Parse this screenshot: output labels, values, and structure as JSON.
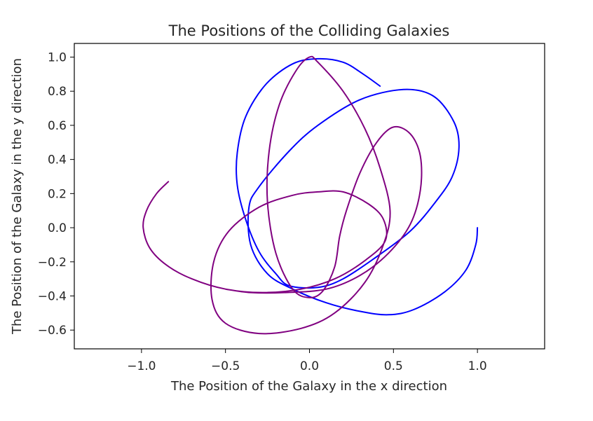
{
  "chart_data": {
    "type": "line",
    "title": "The Positions of the Colliding Galaxies",
    "xlabel": "The Position of the Galaxy in the x direction",
    "ylabel": "The Position of the Galaxy in the y direction",
    "xlim": [
      -1.4,
      1.4
    ],
    "ylim": [
      -0.71,
      1.08
    ],
    "xticks": [
      -1.0,
      -0.5,
      0.0,
      0.5,
      1.0
    ],
    "xtick_labels": [
      "−1.0",
      "−0.5",
      "0.0",
      "0.5",
      "1.0"
    ],
    "yticks": [
      -0.6,
      -0.4,
      -0.2,
      0.0,
      0.2,
      0.4,
      0.6,
      0.8,
      1.0
    ],
    "ytick_labels": [
      "−0.6",
      "−0.4",
      "−0.2",
      "0.0",
      "0.2",
      "0.4",
      "0.6",
      "0.8",
      "1.0"
    ],
    "grid": false,
    "series": [
      {
        "color": "#0000ff",
        "points": [
          [
            1.0,
            0.0
          ],
          [
            0.99,
            -0.1
          ],
          [
            0.93,
            -0.25
          ],
          [
            0.8,
            -0.38
          ],
          [
            0.62,
            -0.48
          ],
          [
            0.47,
            -0.51
          ],
          [
            0.3,
            -0.49
          ],
          [
            0.1,
            -0.44
          ],
          [
            -0.1,
            -0.36
          ],
          [
            -0.25,
            -0.27
          ],
          [
            -0.35,
            -0.1
          ],
          [
            -0.36,
            0.12
          ],
          [
            -0.3,
            0.24
          ],
          [
            -0.12,
            0.45
          ],
          [
            0.05,
            0.6
          ],
          [
            0.3,
            0.75
          ],
          [
            0.56,
            0.81
          ],
          [
            0.74,
            0.77
          ],
          [
            0.86,
            0.62
          ],
          [
            0.89,
            0.47
          ],
          [
            0.85,
            0.3
          ],
          [
            0.75,
            0.15
          ],
          [
            0.6,
            -0.02
          ],
          [
            0.4,
            -0.17
          ],
          [
            0.2,
            -0.3
          ],
          [
            0.05,
            -0.35
          ],
          [
            -0.12,
            -0.34
          ],
          [
            -0.2,
            -0.27
          ],
          [
            -0.3,
            -0.14
          ],
          [
            -0.38,
            0.05
          ],
          [
            -0.43,
            0.25
          ],
          [
            -0.43,
            0.44
          ],
          [
            -0.38,
            0.65
          ],
          [
            -0.26,
            0.84
          ],
          [
            -0.1,
            0.96
          ],
          [
            0.05,
            0.99
          ],
          [
            0.2,
            0.97
          ],
          [
            0.32,
            0.9
          ],
          [
            0.42,
            0.83
          ]
        ]
      },
      {
        "color": "#800080",
        "points": [
          [
            -0.84,
            0.27
          ],
          [
            -0.91,
            0.2
          ],
          [
            -0.97,
            0.1
          ],
          [
            -0.99,
            0.0
          ],
          [
            -0.95,
            -0.12
          ],
          [
            -0.85,
            -0.22
          ],
          [
            -0.7,
            -0.3
          ],
          [
            -0.5,
            -0.36
          ],
          [
            -0.28,
            -0.38
          ],
          [
            -0.05,
            -0.36
          ],
          [
            0.15,
            -0.3
          ],
          [
            0.32,
            -0.2
          ],
          [
            0.45,
            -0.08
          ],
          [
            0.44,
            0.05
          ],
          [
            0.35,
            0.14
          ],
          [
            0.2,
            0.21
          ],
          [
            0.05,
            0.21
          ],
          [
            -0.1,
            0.19
          ],
          [
            -0.3,
            0.12
          ],
          [
            -0.48,
            -0.02
          ],
          [
            -0.57,
            -0.2
          ],
          [
            -0.58,
            -0.42
          ],
          [
            -0.5,
            -0.56
          ],
          [
            -0.3,
            -0.62
          ],
          [
            -0.05,
            -0.59
          ],
          [
            0.15,
            -0.5
          ],
          [
            0.33,
            -0.32
          ],
          [
            0.44,
            -0.1
          ],
          [
            0.48,
            0.1
          ],
          [
            0.42,
            0.35
          ],
          [
            0.33,
            0.58
          ],
          [
            0.2,
            0.8
          ],
          [
            0.05,
            0.97
          ],
          [
            0.0,
            1.0
          ],
          [
            -0.08,
            0.92
          ],
          [
            -0.18,
            0.72
          ],
          [
            -0.24,
            0.45
          ],
          [
            -0.25,
            0.15
          ],
          [
            -0.2,
            -0.15
          ],
          [
            -0.1,
            -0.36
          ],
          [
            0.0,
            -0.41
          ],
          [
            0.08,
            -0.37
          ],
          [
            0.15,
            -0.23
          ],
          [
            0.18,
            -0.05
          ],
          [
            0.22,
            0.1
          ],
          [
            0.3,
            0.32
          ],
          [
            0.4,
            0.5
          ],
          [
            0.5,
            0.59
          ],
          [
            0.6,
            0.55
          ],
          [
            0.66,
            0.42
          ],
          [
            0.66,
            0.22
          ],
          [
            0.6,
            0.02
          ],
          [
            0.47,
            -0.15
          ],
          [
            0.3,
            -0.28
          ],
          [
            0.1,
            -0.36
          ],
          [
            -0.15,
            -0.38
          ],
          [
            -0.35,
            -0.38
          ],
          [
            -0.5,
            -0.36
          ]
        ]
      }
    ]
  }
}
